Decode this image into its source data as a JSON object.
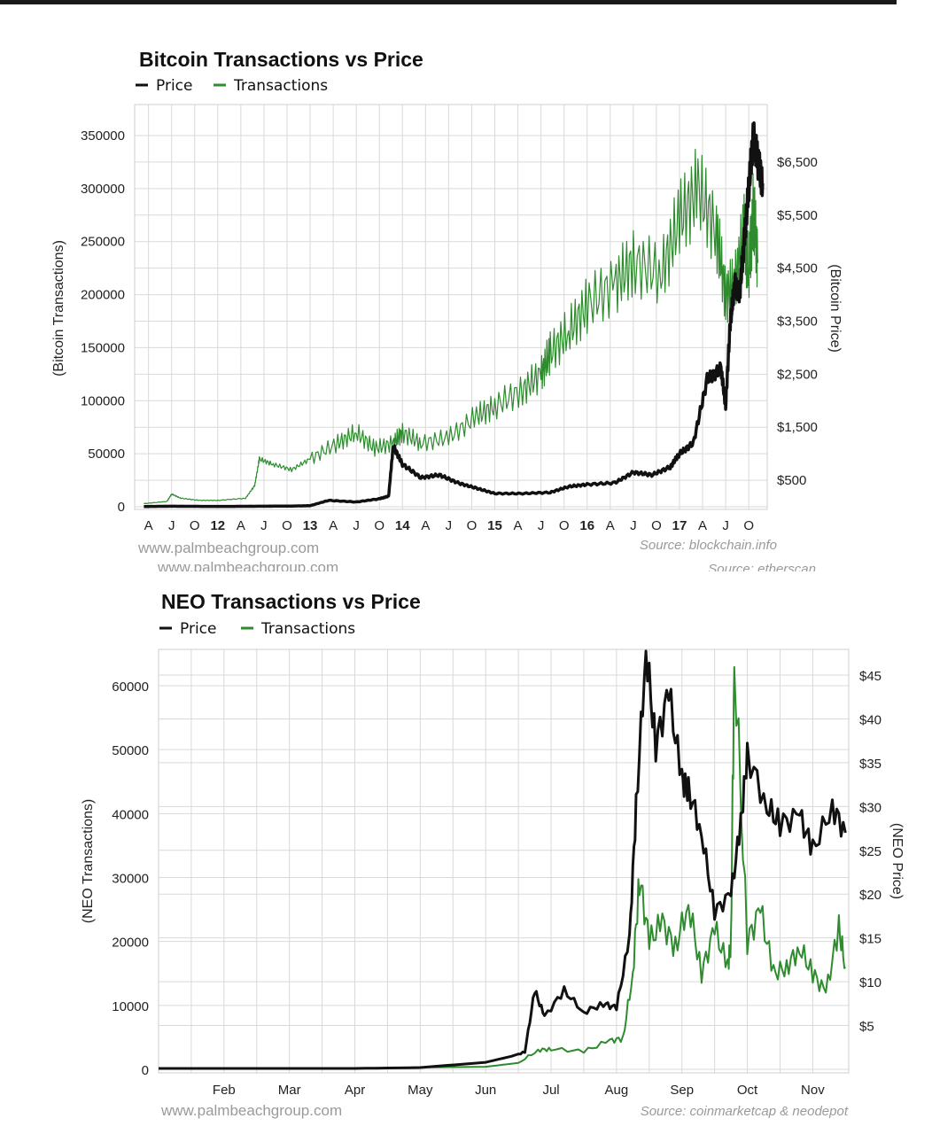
{
  "chart_data": [
    {
      "type": "line",
      "title": "Bitcoin Transactions vs Price",
      "ylabel": "(Bitcoin Transactions)",
      "ylabel_right": "(Bitcoin Price)",
      "legend": [
        "Price",
        "Transactions"
      ],
      "legend_position": "top-left",
      "grid": true,
      "x_ticks": [
        "A",
        "J",
        "O",
        "12",
        "A",
        "J",
        "O",
        "13",
        "A",
        "J",
        "O",
        "14",
        "A",
        "J",
        "O",
        "15",
        "A",
        "J",
        "O",
        "16",
        "A",
        "J",
        "O",
        "17",
        "A",
        "J",
        "O"
      ],
      "x_ticks_bold": [
        "12",
        "13",
        "14",
        "15",
        "16",
        "17"
      ],
      "y_ticks": [
        "0",
        "50000",
        "100000",
        "150000",
        "200000",
        "250000",
        "300000",
        "350000"
      ],
      "y_right_ticks": [
        "$500",
        "$1,500",
        "$2,500",
        "$3,500",
        "$4,500",
        "$5,500",
        "$6,500"
      ],
      "ylim": [
        0,
        350000
      ],
      "y_right_lim": [
        0,
        7000
      ],
      "series": [
        {
          "name": "Transactions",
          "color": "#2e8b2e",
          "x": [
            2011.2,
            2011.45,
            2011.5,
            2011.6,
            2011.8,
            2012.0,
            2012.3,
            2012.4,
            2012.45,
            2012.6,
            2012.8,
            2013.0,
            2013.3,
            2013.5,
            2013.7,
            2013.9,
            2014.0,
            2014.2,
            2014.5,
            2014.8,
            2015.0,
            2015.3,
            2015.5,
            2015.6,
            2015.8,
            2016.0,
            2016.3,
            2016.5,
            2016.8,
            2017.0,
            2017.2,
            2017.4,
            2017.5,
            2017.6,
            2017.7,
            2017.75,
            2017.8,
            2017.85
          ],
          "values": [
            3000,
            5000,
            12000,
            8000,
            6000,
            6000,
            8000,
            20000,
            45000,
            40000,
            35000,
            45000,
            60000,
            70000,
            55000,
            60000,
            70000,
            60000,
            65000,
            85000,
            95000,
            110000,
            125000,
            145000,
            165000,
            190000,
            210000,
            230000,
            220000,
            270000,
            300000,
            260000,
            200000,
            210000,
            260000,
            220000,
            280000,
            230000
          ]
        },
        {
          "name": "Price",
          "color": "#111111",
          "x": [
            2011.2,
            2011.5,
            2012.0,
            2012.5,
            2012.8,
            2013.0,
            2013.2,
            2013.5,
            2013.75,
            2013.85,
            2013.9,
            2014.0,
            2014.2,
            2014.4,
            2014.6,
            2014.8,
            2015.0,
            2015.3,
            2015.6,
            2015.8,
            2016.0,
            2016.3,
            2016.5,
            2016.7,
            2016.9,
            2017.0,
            2017.15,
            2017.3,
            2017.45,
            2017.5,
            2017.55,
            2017.6,
            2017.65,
            2017.7,
            2017.75,
            2017.8,
            2017.85,
            2017.9
          ],
          "values": [
            5,
            10,
            6,
            10,
            13,
            20,
            120,
            90,
            150,
            200,
            1150,
            800,
            550,
            600,
            450,
            350,
            250,
            250,
            270,
            380,
            420,
            450,
            650,
            600,
            750,
            1000,
            1200,
            2400,
            2600,
            1900,
            3500,
            4200,
            4000,
            5000,
            6000,
            7000,
            6500,
            6100
          ]
        }
      ],
      "watermark": "www.palmbeachgroup.com",
      "watermark_overlap": "www.palmbeachgroup.com",
      "source": "Source: blockchain.info",
      "source_overlap": "Source: etherscan"
    },
    {
      "type": "line",
      "title": "NEO Transactions vs Price",
      "ylabel": "(NEO Transactions)",
      "ylabel_right": "(NEO Price)",
      "legend": [
        "Price",
        "Transactions"
      ],
      "legend_position": "top-left",
      "grid": true,
      "x_ticks": [
        "Feb",
        "Mar",
        "Apr",
        "May",
        "Jun",
        "Jul",
        "Aug",
        "Sep",
        "Oct",
        "Nov"
      ],
      "y_ticks": [
        "0",
        "10000",
        "20000",
        "30000",
        "40000",
        "50000",
        "60000"
      ],
      "y_right_ticks": [
        "$5",
        "$10",
        "$15",
        "$20",
        "$25",
        "$30",
        "$35",
        "$40",
        "$45"
      ],
      "ylim": [
        0,
        66000
      ],
      "y_right_lim": [
        0,
        48
      ],
      "series": [
        {
          "name": "Transactions",
          "color": "#2e8b2e",
          "x": [
            0,
            1,
            2,
            3,
            4,
            5,
            5.5,
            5.8,
            6.0,
            6.5,
            6.9,
            7.1,
            7.25,
            7.35,
            7.5,
            7.7,
            7.9,
            8.1,
            8.3,
            8.5,
            8.7,
            8.75,
            8.8,
            9.0,
            9.2,
            9.4,
            9.6,
            9.8,
            10.0,
            10.2,
            10.4,
            10.5
          ],
          "values": [
            100,
            100,
            200,
            150,
            300,
            400,
            1000,
            3000,
            3200,
            2800,
            4500,
            4800,
            15000,
            30000,
            20000,
            23000,
            19000,
            26000,
            15000,
            22000,
            16000,
            20000,
            65000,
            20000,
            25000,
            15000,
            16000,
            19000,
            15000,
            12000,
            22000,
            16000
          ]
        },
        {
          "name": "Price",
          "color": "#111111",
          "x": [
            0,
            1,
            2,
            3,
            4,
            4.5,
            5.0,
            5.4,
            5.6,
            5.75,
            5.9,
            6.2,
            6.5,
            6.8,
            7.0,
            7.2,
            7.3,
            7.45,
            7.6,
            7.8,
            8.0,
            8.1,
            8.3,
            8.5,
            8.75,
            8.9,
            9.0,
            9.3,
            9.5,
            9.8,
            10.0,
            10.3,
            10.5
          ],
          "values": [
            0.1,
            0.1,
            0.1,
            0.1,
            0.2,
            0.5,
            0.8,
            1.5,
            2.0,
            9.0,
            6.0,
            9.0,
            6.5,
            7.5,
            7.0,
            15.0,
            30.0,
            48.0,
            37.0,
            43.0,
            33.0,
            32.0,
            27.0,
            18.0,
            20.0,
            28.0,
            36.0,
            30.0,
            28.0,
            29.0,
            25.0,
            30.0,
            27.0
          ]
        }
      ],
      "watermark": "www.palmbeachgroup.com",
      "source": "Source: coinmarketcap & neodepot"
    }
  ]
}
